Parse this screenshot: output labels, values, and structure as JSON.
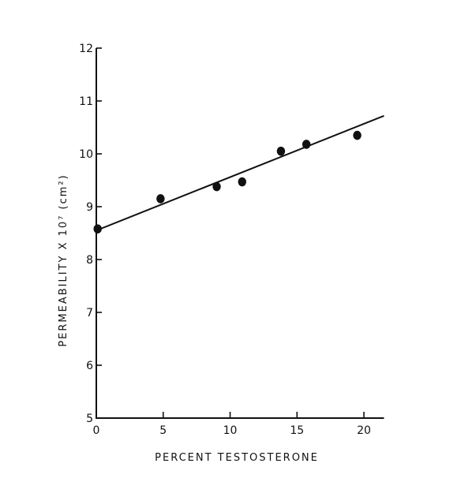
{
  "chart_data": {
    "type": "scatter",
    "title": "",
    "xlabel": "PERCENT TESTOSTERONE",
    "ylabel": "PERMEABILITY X 10⁷ (cm²)",
    "xlim": [
      0,
      21.5
    ],
    "ylim": [
      5,
      12
    ],
    "x_ticks": [
      0,
      5,
      10,
      15,
      20
    ],
    "x_tick_labels": [
      "0",
      "5",
      "10",
      "15",
      "20"
    ],
    "y_ticks": [
      5,
      6,
      7,
      8,
      9,
      10,
      11,
      12
    ],
    "y_tick_labels": [
      "5",
      "6",
      "7",
      "8",
      "9",
      "10",
      "11",
      "12"
    ],
    "grid": false,
    "legend": "none",
    "points": [
      {
        "x": 0.1,
        "y": 8.58
      },
      {
        "x": 4.8,
        "y": 9.15
      },
      {
        "x": 9.0,
        "y": 9.38
      },
      {
        "x": 10.9,
        "y": 9.47
      },
      {
        "x": 13.8,
        "y": 10.05
      },
      {
        "x": 15.7,
        "y": 10.18
      },
      {
        "x": 19.5,
        "y": 10.35
      }
    ],
    "fit_line": {
      "x": [
        0,
        21.5
      ],
      "y": [
        8.55,
        10.72
      ]
    }
  }
}
